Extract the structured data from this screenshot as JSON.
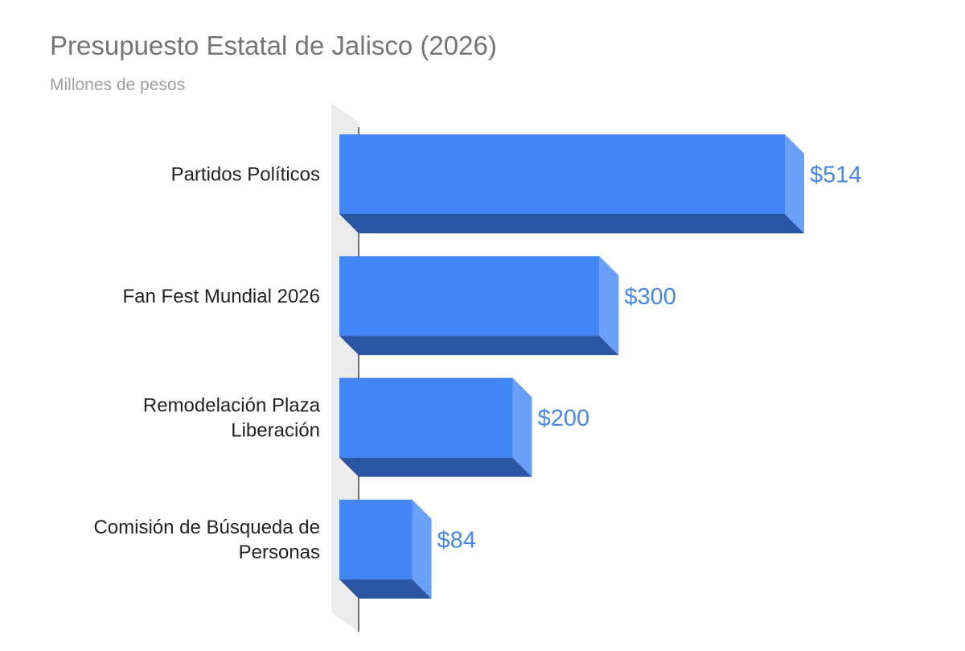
{
  "chart_data": {
    "type": "bar",
    "orientation": "horizontal",
    "style": "3d",
    "title": "Presupuesto Estatal de Jalisco (2026)",
    "subtitle": "Millones de pesos",
    "categories": [
      [
        "Partidos Políticos"
      ],
      [
        "Fan Fest Mundial 2026"
      ],
      [
        "Remodelación Plaza",
        "Liberación"
      ],
      [
        "Comisión de Búsqueda de",
        "Personas"
      ]
    ],
    "values": [
      514,
      300,
      200,
      84
    ],
    "value_labels": [
      "$514",
      "$300",
      "$200",
      "$84"
    ],
    "xlim": [
      0,
      514
    ],
    "grid": false,
    "legend": "none",
    "colors": {
      "bar_front": "#4285f4",
      "bar_side": "#6a9ff7",
      "bar_bottom": "#2c56a3",
      "value_text": "#4a88e0",
      "category_text": "#222222",
      "title_text": "#757575",
      "subtitle_text": "#9e9e9e",
      "back_wall": "#ececec",
      "axis_line": "#444444"
    }
  }
}
